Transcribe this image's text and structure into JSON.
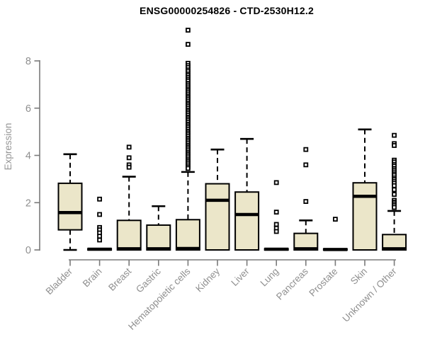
{
  "page": {
    "background": "#ffffff"
  },
  "chart_data": {
    "type": "boxplot",
    "title": "ENSG00000254826 - CTD-2530H12.2",
    "ylabel": "Expression",
    "xlabel": "",
    "y_ticks": [
      0,
      2,
      4,
      6,
      8
    ],
    "ylim": [
      0,
      9.4
    ],
    "grid": false,
    "legend": false,
    "categories": [
      "Bladder",
      "Brain",
      "Breast",
      "Gastric",
      "Hematopoietic cells",
      "Kidney",
      "Liver",
      "Lung",
      "Pancreas",
      "Prostate",
      "Skin",
      "Unknown / Other"
    ],
    "series": [
      {
        "name": "Bladder",
        "whislo": 0,
        "q1": 0.85,
        "med": 1.58,
        "q3": 2.82,
        "whishi": 4.05,
        "outliers": []
      },
      {
        "name": "Brain",
        "whislo": 0,
        "q1": 0,
        "med": 0.03,
        "q3": 0.05,
        "whishi": 0.05,
        "outliers": [
          2.15,
          1.5,
          0.95,
          0.85,
          0.72,
          0.58,
          0.42
        ]
      },
      {
        "name": "Breast",
        "whislo": 0,
        "q1": 0,
        "med": 0.05,
        "q3": 1.25,
        "whishi": 3.1,
        "outliers": [
          4.35,
          3.9,
          3.6,
          3.5
        ]
      },
      {
        "name": "Gastric",
        "whislo": 0,
        "q1": 0,
        "med": 0.05,
        "q3": 1.05,
        "whishi": 1.85,
        "outliers": []
      },
      {
        "name": "Hematopoietic cells",
        "whislo": 0,
        "q1": 0,
        "med": 0.06,
        "q3": 1.28,
        "whishi": 3.3,
        "outliers": [
          9.3,
          8.7,
          7.9,
          7.8,
          7.72,
          7.62,
          7.55,
          7.45,
          7.38,
          7.3,
          7.22,
          7.15,
          7.05,
          6.98,
          6.9,
          6.82,
          6.75,
          6.68,
          6.6,
          6.52,
          6.45,
          6.38,
          6.3,
          6.22,
          6.15,
          6.08,
          6.0,
          5.92,
          5.85,
          5.78,
          5.7,
          5.62,
          5.55,
          5.48,
          5.4,
          5.32,
          5.25,
          5.18,
          5.1,
          5.02,
          4.95,
          4.88,
          4.8,
          4.72,
          4.65,
          4.58,
          4.5,
          4.42,
          4.35,
          4.28,
          4.2,
          4.12,
          4.05,
          3.98,
          3.9,
          3.82,
          3.75,
          3.68,
          3.6,
          3.52,
          3.45
        ]
      },
      {
        "name": "Kidney",
        "whislo": 0,
        "q1": 0,
        "med": 2.1,
        "q3": 2.8,
        "whishi": 4.25,
        "outliers": []
      },
      {
        "name": "Liver",
        "whislo": 0,
        "q1": 0,
        "med": 1.5,
        "q3": 2.45,
        "whishi": 4.7,
        "outliers": []
      },
      {
        "name": "Lung",
        "whislo": 0,
        "q1": 0,
        "med": 0.03,
        "q3": 0.05,
        "whishi": 0.05,
        "outliers": [
          2.85,
          1.6,
          1.08,
          0.92,
          0.78
        ]
      },
      {
        "name": "Pancreas",
        "whislo": 0,
        "q1": 0,
        "med": 0.05,
        "q3": 0.7,
        "whishi": 1.25,
        "outliers": [
          4.25,
          3.6,
          2.05
        ]
      },
      {
        "name": "Prostate",
        "whislo": 0,
        "q1": 0,
        "med": 0.02,
        "q3": 0.04,
        "whishi": 0.04,
        "outliers": [
          1.3
        ]
      },
      {
        "name": "Skin",
        "whislo": 0,
        "q1": 0,
        "med": 2.27,
        "q3": 2.84,
        "whishi": 5.1,
        "outliers": []
      },
      {
        "name": "Unknown / Other",
        "whislo": 0,
        "q1": 0,
        "med": 0.05,
        "q3": 0.65,
        "whishi": 1.65,
        "outliers": [
          4.85,
          4.5,
          4.42,
          3.8,
          3.72,
          3.62,
          3.55,
          3.45,
          3.38,
          3.3,
          3.22,
          3.15,
          3.05,
          2.98,
          2.9,
          2.82,
          2.72,
          2.55,
          2.35,
          2.1,
          2.02,
          1.95,
          1.88,
          1.8
        ]
      }
    ],
    "colors": {
      "box_fill": "#ebe6c9",
      "box_stroke": "#000000",
      "median": "#000000",
      "whisker": "#000000",
      "axis_line": "#7a7a7a",
      "tick_label": "#8f8f8f",
      "axis_label": "#969696",
      "title": "#000000",
      "background": "#ffffff"
    }
  }
}
